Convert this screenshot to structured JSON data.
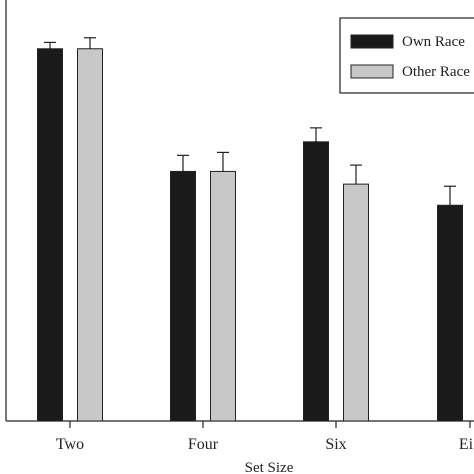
{
  "chart_data": {
    "type": "bar",
    "title": "",
    "xlabel": "Set Size",
    "ylabel": "",
    "categories": [
      "Two",
      "Four",
      "Six",
      "Eig"
    ],
    "ylim": [
      0,
      100
    ],
    "grid": false,
    "legend_position": "top-right",
    "error_bars": true,
    "series": [
      {
        "name": "Own Race",
        "legend_label": "Own Race",
        "color": "#1a1a1a",
        "values": [
          88,
          59,
          66,
          51
        ],
        "errors": [
          1.5,
          3.8,
          3.3,
          4.5
        ]
      },
      {
        "name": "Other Race",
        "legend_label": "Other Race",
        "color": "#c8c8c8",
        "values": [
          88,
          59,
          56,
          null
        ],
        "errors": [
          2.6,
          4.5,
          4.5,
          null
        ]
      }
    ]
  }
}
